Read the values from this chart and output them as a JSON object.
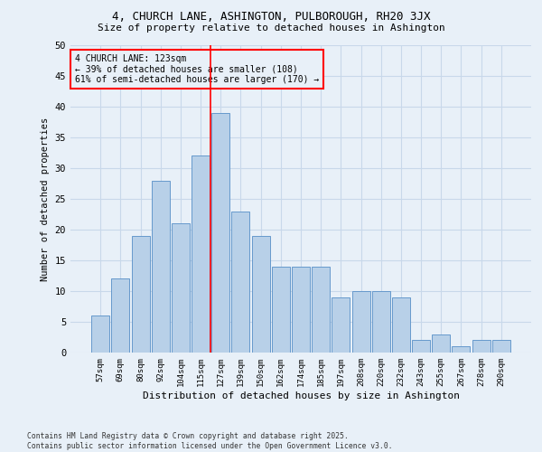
{
  "title_line1": "4, CHURCH LANE, ASHINGTON, PULBOROUGH, RH20 3JX",
  "title_line2": "Size of property relative to detached houses in Ashington",
  "xlabel": "Distribution of detached houses by size in Ashington",
  "ylabel": "Number of detached properties",
  "footnote": "Contains HM Land Registry data © Crown copyright and database right 2025.\nContains public sector information licensed under the Open Government Licence v3.0.",
  "categories": [
    "57sqm",
    "69sqm",
    "80sqm",
    "92sqm",
    "104sqm",
    "115sqm",
    "127sqm",
    "139sqm",
    "150sqm",
    "162sqm",
    "174sqm",
    "185sqm",
    "197sqm",
    "208sqm",
    "220sqm",
    "232sqm",
    "243sqm",
    "255sqm",
    "267sqm",
    "278sqm",
    "290sqm"
  ],
  "values": [
    6,
    12,
    19,
    28,
    21,
    32,
    39,
    23,
    19,
    14,
    14,
    14,
    9,
    10,
    10,
    9,
    2,
    3,
    1,
    2,
    2
  ],
  "bar_color": "#b8d0e8",
  "bar_edge_color": "#6699cc",
  "grid_color": "#c8d8ea",
  "background_color": "#e8f0f8",
  "annotation_box_text": "4 CHURCH LANE: 123sqm\n← 39% of detached houses are smaller (108)\n61% of semi-detached houses are larger (170) →",
  "annotation_box_color": "red",
  "vline_x_index": 6,
  "vline_color": "red",
  "ylim": [
    0,
    50
  ],
  "yticks": [
    0,
    5,
    10,
    15,
    20,
    25,
    30,
    35,
    40,
    45,
    50
  ]
}
